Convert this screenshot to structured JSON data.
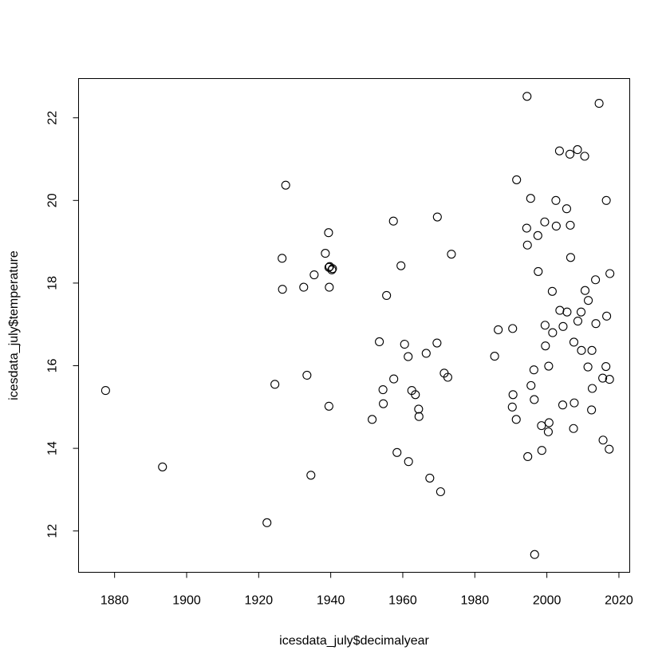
{
  "chart_data": {
    "type": "scatter",
    "title": "",
    "xlabel": "icesdata_july$decimalyear",
    "ylabel": "icesdata_july$temperature",
    "xlim": [
      1870,
      2023
    ],
    "ylim": [
      11.0,
      22.95
    ],
    "xticks": [
      1880,
      1900,
      1920,
      1940,
      1960,
      1980,
      2000,
      2020
    ],
    "yticks": [
      12,
      14,
      16,
      18,
      20,
      22
    ],
    "grid": false,
    "legend": "none",
    "point_color": "#000000",
    "points": [
      [
        1877.5,
        15.4
      ],
      [
        1893.3,
        13.55
      ],
      [
        1922.3,
        12.2
      ],
      [
        1924.5,
        15.55
      ],
      [
        1926.5,
        18.6
      ],
      [
        1926.6,
        17.85
      ],
      [
        1927.5,
        20.37
      ],
      [
        1932.5,
        17.9
      ],
      [
        1933.4,
        15.77
      ],
      [
        1934.5,
        13.35
      ],
      [
        1935.4,
        18.2
      ],
      [
        1938.5,
        18.72
      ],
      [
        1939.4,
        19.22
      ],
      [
        1939.5,
        18.38
      ],
      [
        1939.6,
        17.9
      ],
      [
        1939.7,
        18.4
      ],
      [
        1940.3,
        18.32
      ],
      [
        1940.5,
        18.35
      ],
      [
        1939.5,
        15.02
      ],
      [
        1951.5,
        14.7
      ],
      [
        1953.5,
        16.58
      ],
      [
        1954.5,
        15.42
      ],
      [
        1954.6,
        15.08
      ],
      [
        1955.5,
        17.7
      ],
      [
        1957.4,
        19.5
      ],
      [
        1957.5,
        15.68
      ],
      [
        1958.4,
        13.9
      ],
      [
        1959.5,
        18.42
      ],
      [
        1960.5,
        16.52
      ],
      [
        1961.5,
        16.22
      ],
      [
        1961.6,
        13.68
      ],
      [
        1962.5,
        15.4
      ],
      [
        1963.5,
        15.3
      ],
      [
        1964.4,
        14.95
      ],
      [
        1964.5,
        14.77
      ],
      [
        1966.5,
        16.3
      ],
      [
        1967.5,
        13.28
      ],
      [
        1969.5,
        16.55
      ],
      [
        1969.6,
        19.6
      ],
      [
        1970.5,
        12.95
      ],
      [
        1971.5,
        15.82
      ],
      [
        1972.5,
        15.72
      ],
      [
        1973.5,
        18.7
      ],
      [
        1985.5,
        16.23
      ],
      [
        1986.5,
        16.87
      ],
      [
        1990.5,
        16.9
      ],
      [
        1990.6,
        15.3
      ],
      [
        1990.4,
        15.0
      ],
      [
        1991.5,
        14.7
      ],
      [
        1991.6,
        20.5
      ],
      [
        1994.5,
        22.52
      ],
      [
        1994.4,
        19.33
      ],
      [
        1994.6,
        18.92
      ],
      [
        1994.7,
        13.8
      ],
      [
        1995.5,
        20.05
      ],
      [
        1995.6,
        15.52
      ],
      [
        1996.4,
        15.9
      ],
      [
        1996.5,
        15.18
      ],
      [
        1996.6,
        11.43
      ],
      [
        1997.5,
        19.15
      ],
      [
        1997.6,
        18.28
      ],
      [
        1998.5,
        14.55
      ],
      [
        1998.6,
        13.95
      ],
      [
        1999.4,
        19.48
      ],
      [
        1999.5,
        16.98
      ],
      [
        1999.6,
        16.48
      ],
      [
        2000.5,
        15.99
      ],
      [
        2000.6,
        14.62
      ],
      [
        2000.4,
        14.4
      ],
      [
        2001.5,
        17.8
      ],
      [
        2001.6,
        16.8
      ],
      [
        2002.5,
        20.0
      ],
      [
        2002.6,
        19.38
      ],
      [
        2003.5,
        21.2
      ],
      [
        2003.6,
        17.34
      ],
      [
        2004.5,
        16.95
      ],
      [
        2004.4,
        15.05
      ],
      [
        2005.5,
        19.8
      ],
      [
        2005.6,
        17.3
      ],
      [
        2006.4,
        21.12
      ],
      [
        2006.5,
        19.4
      ],
      [
        2006.6,
        18.62
      ],
      [
        2007.5,
        16.57
      ],
      [
        2007.6,
        15.1
      ],
      [
        2007.4,
        14.48
      ],
      [
        2008.5,
        21.23
      ],
      [
        2008.6,
        17.08
      ],
      [
        2009.5,
        17.3
      ],
      [
        2009.6,
        16.37
      ],
      [
        2010.5,
        21.07
      ],
      [
        2010.6,
        17.82
      ],
      [
        2011.5,
        17.58
      ],
      [
        2011.4,
        15.97
      ],
      [
        2012.5,
        16.37
      ],
      [
        2012.6,
        15.45
      ],
      [
        2012.4,
        14.93
      ],
      [
        2013.5,
        18.08
      ],
      [
        2013.6,
        17.02
      ],
      [
        2014.5,
        22.35
      ],
      [
        2015.5,
        15.7
      ],
      [
        2015.6,
        14.2
      ],
      [
        2016.5,
        20.0
      ],
      [
        2016.6,
        17.2
      ],
      [
        2016.4,
        15.98
      ],
      [
        2017.5,
        18.23
      ],
      [
        2017.4,
        15.67
      ],
      [
        2017.3,
        13.98
      ]
    ]
  }
}
